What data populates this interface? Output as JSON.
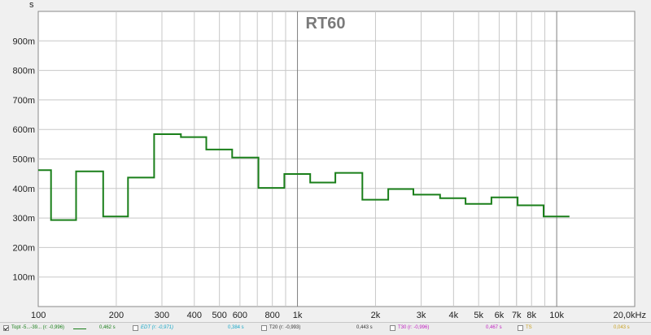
{
  "chart_data": {
    "type": "line",
    "title": "RT60",
    "ylabel": "s",
    "xscale": "log",
    "xlim": [
      100,
      20000
    ],
    "ylim": [
      0,
      1000
    ],
    "grid": true,
    "y_ticks": [
      {
        "value": 100,
        "label": "100m"
      },
      {
        "value": 200,
        "label": "200m"
      },
      {
        "value": 300,
        "label": "300m"
      },
      {
        "value": 400,
        "label": "400m"
      },
      {
        "value": 500,
        "label": "500m"
      },
      {
        "value": 600,
        "label": "600m"
      },
      {
        "value": 700,
        "label": "700m"
      },
      {
        "value": 800,
        "label": "800m"
      },
      {
        "value": 900,
        "label": "900m"
      }
    ],
    "x_ticks": [
      {
        "value": 100,
        "label": "100"
      },
      {
        "value": 200,
        "label": "200"
      },
      {
        "value": 300,
        "label": "300"
      },
      {
        "value": 400,
        "label": "400"
      },
      {
        "value": 500,
        "label": "500"
      },
      {
        "value": 600,
        "label": "600"
      },
      {
        "value": 800,
        "label": "800"
      },
      {
        "value": 1000,
        "label": "1k"
      },
      {
        "value": 2000,
        "label": "2k"
      },
      {
        "value": 3000,
        "label": "3k"
      },
      {
        "value": 4000,
        "label": "4k"
      },
      {
        "value": 5000,
        "label": "5k"
      },
      {
        "value": 6000,
        "label": "6k"
      },
      {
        "value": 7000,
        "label": "7k"
      },
      {
        "value": 8000,
        "label": "8k"
      },
      {
        "value": 10000,
        "label": "10k"
      },
      {
        "value": 20000,
        "label": "20,0kHz"
      }
    ],
    "minor_x_ticks": [
      700,
      900,
      7000,
      9000
    ],
    "series": [
      {
        "name": "Topt -5...-39...",
        "color": "#1a7f1a",
        "step": true,
        "x": [
          100,
          112,
          140,
          178,
          222,
          280,
          355,
          445,
          560,
          707,
          890,
          1120,
          1400,
          1780,
          2240,
          2800,
          3550,
          4450,
          5600,
          7070,
          8900
        ],
        "y": [
          462,
          293,
          458,
          305,
          437,
          584,
          574,
          532,
          505,
          402,
          449,
          420,
          453,
          362,
          398,
          379,
          367,
          348,
          370,
          343,
          305
        ],
        "x_end": 11200
      }
    ]
  },
  "legend": {
    "items": [
      {
        "label": "Topt -5...-39...  (r: -0,996)",
        "value": "0,462 s",
        "checked": true,
        "color": "#1a7f1a"
      },
      {
        "label": "EDT (r: -0,971)",
        "value": "0,384 s",
        "checked": false,
        "color": "#19a8c8"
      },
      {
        "label": "T20 (r: -0,993)",
        "value": "0,443 s",
        "checked": false,
        "color": "#333333"
      },
      {
        "label": "T30 (r: -0,996)",
        "value": "0,467 s",
        "checked": false,
        "color": "#c020c0"
      },
      {
        "label": "TS",
        "value": "0,043 s",
        "checked": false,
        "color": "#c8a020"
      }
    ]
  }
}
